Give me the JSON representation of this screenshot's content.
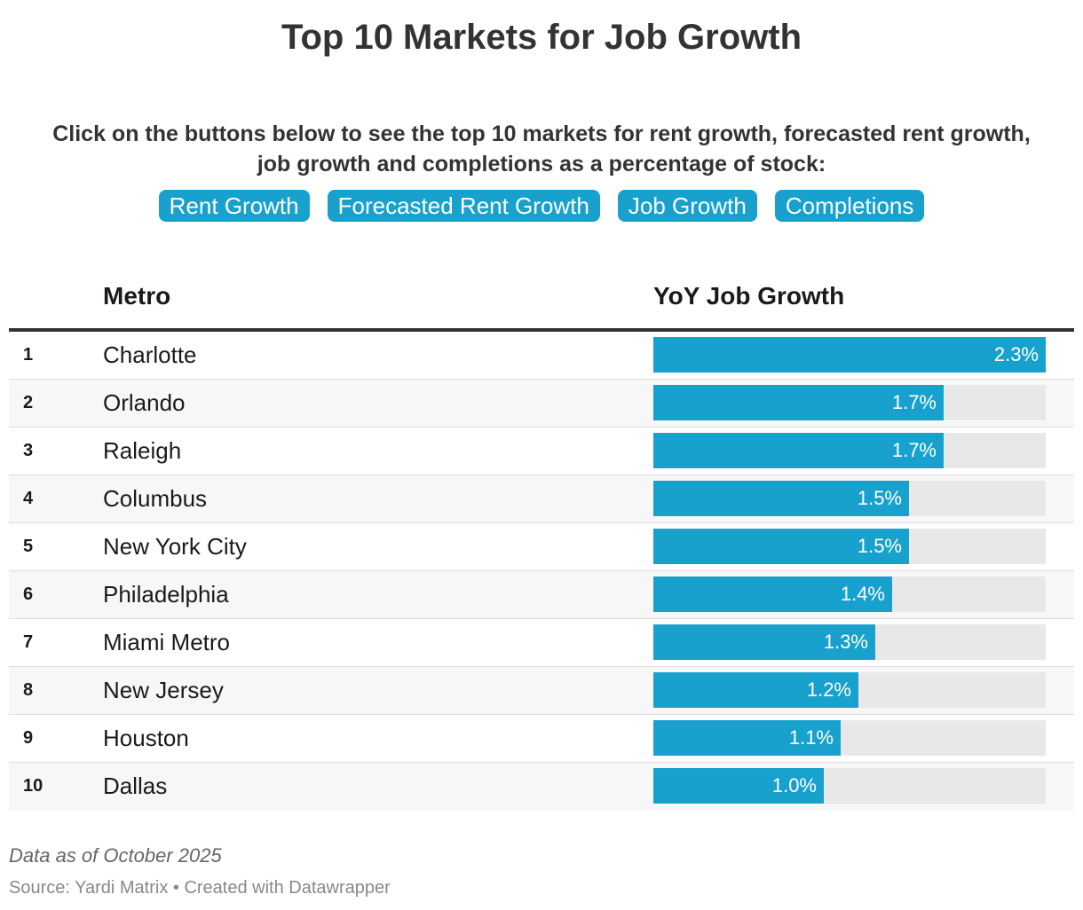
{
  "title": "Top 10 Markets for Job Growth",
  "intro_line1": "Click on the buttons below to see the top 10 markets for rent growth, forecasted rent growth,",
  "intro_line2": "job growth and completions as a percentage of stock:",
  "buttons": [
    "Rent Growth",
    "Forecasted Rent Growth",
    "Job Growth",
    "Completions"
  ],
  "colors": {
    "accent": "#18a1cd",
    "track": "#e8e8e8",
    "text": "#333333"
  },
  "chart_data": {
    "type": "table",
    "columns": [
      "Metro",
      "YoY Job Growth"
    ],
    "xlim": [
      0,
      2.3
    ],
    "rows": [
      {
        "rank": "1",
        "metro": "Charlotte",
        "value": 2.3,
        "label": "2.3%"
      },
      {
        "rank": "2",
        "metro": "Orlando",
        "value": 1.7,
        "label": "1.7%"
      },
      {
        "rank": "3",
        "metro": "Raleigh",
        "value": 1.7,
        "label": "1.7%"
      },
      {
        "rank": "4",
        "metro": "Columbus",
        "value": 1.5,
        "label": "1.5%"
      },
      {
        "rank": "5",
        "metro": "New York City",
        "value": 1.5,
        "label": "1.5%"
      },
      {
        "rank": "6",
        "metro": "Philadelphia",
        "value": 1.4,
        "label": "1.4%"
      },
      {
        "rank": "7",
        "metro": "Miami Metro",
        "value": 1.3,
        "label": "1.3%"
      },
      {
        "rank": "8",
        "metro": "New Jersey",
        "value": 1.2,
        "label": "1.2%"
      },
      {
        "rank": "9",
        "metro": "Houston",
        "value": 1.1,
        "label": "1.1%"
      },
      {
        "rank": "10",
        "metro": "Dallas",
        "value": 1.0,
        "label": "1.0%"
      }
    ]
  },
  "notes": "Data as of October 2025",
  "source": "Source: Yardi Matrix • Created with Datawrapper"
}
